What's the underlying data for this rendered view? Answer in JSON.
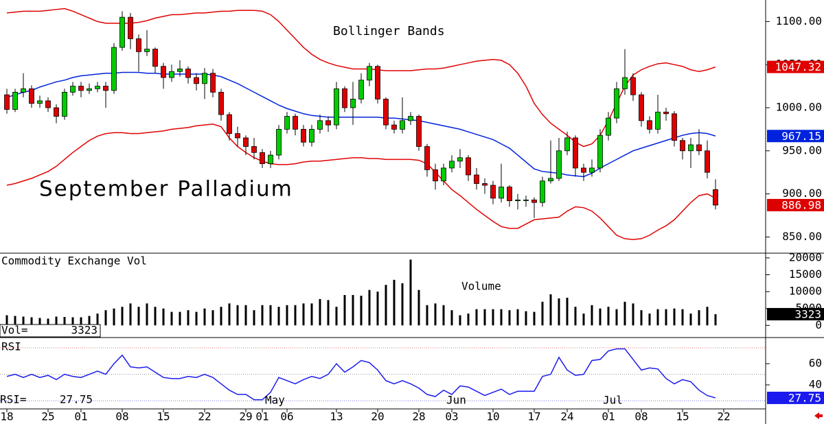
{
  "chart_data": [
    {
      "type": "candlestick",
      "title": "Bollinger Bands",
      "subtitle": "September Palladium",
      "up_color": "#00cc00",
      "down_color": "#dd0000",
      "ylim": [
        832,
        1125
      ],
      "yticks": [
        {
          "value": 1100,
          "label": "1100.00"
        },
        {
          "value": 1050,
          "label": "1050.00"
        },
        {
          "value": 1000,
          "label": "1000.00"
        },
        {
          "value": 950,
          "label": "950.00"
        },
        {
          "value": 900,
          "label": "900.00"
        },
        {
          "value": 850,
          "label": "850.00"
        }
      ],
      "last_label": "886.98",
      "candles": [
        [
          1015,
          1022,
          993,
          998
        ],
        [
          998,
          1022,
          995,
          1018
        ],
        [
          1018,
          1040,
          1012,
          1022
        ],
        [
          1022,
          1026,
          1000,
          1005
        ],
        [
          1005,
          1014,
          1000,
          1008
        ],
        [
          1008,
          1012,
          995,
          1000
        ],
        [
          1000,
          1004,
          982,
          990
        ],
        [
          990,
          1022,
          986,
          1018
        ],
        [
          1018,
          1030,
          1014,
          1025
        ],
        [
          1025,
          1030,
          1012,
          1020
        ],
        [
          1020,
          1028,
          1016,
          1022
        ],
        [
          1022,
          1030,
          1018,
          1025
        ],
        [
          1025,
          1030,
          1000,
          1020
        ],
        [
          1020,
          1075,
          1016,
          1070
        ],
        [
          1070,
          1112,
          1066,
          1105
        ],
        [
          1105,
          1110,
          1068,
          1080
        ],
        [
          1080,
          1085,
          1042,
          1065
        ],
        [
          1065,
          1090,
          1060,
          1068
        ],
        [
          1068,
          1070,
          1040,
          1048
        ],
        [
          1048,
          1052,
          1022,
          1035
        ],
        [
          1035,
          1050,
          1030,
          1042
        ],
        [
          1042,
          1055,
          1036,
          1045
        ],
        [
          1045,
          1048,
          1028,
          1035
        ],
        [
          1035,
          1040,
          1020,
          1028
        ],
        [
          1028,
          1046,
          1010,
          1040
        ],
        [
          1040,
          1045,
          1012,
          1018
        ],
        [
          1018,
          1022,
          985,
          992
        ],
        [
          992,
          995,
          962,
          970
        ],
        [
          970,
          978,
          955,
          965
        ],
        [
          965,
          968,
          945,
          955
        ],
        [
          955,
          965,
          940,
          948
        ],
        [
          948,
          952,
          930,
          935
        ],
        [
          935,
          950,
          930,
          945
        ],
        [
          945,
          980,
          940,
          975
        ],
        [
          975,
          995,
          970,
          990
        ],
        [
          990,
          993,
          968,
          975
        ],
        [
          975,
          980,
          955,
          960
        ],
        [
          960,
          980,
          955,
          975
        ],
        [
          975,
          992,
          970,
          985
        ],
        [
          985,
          990,
          972,
          980
        ],
        [
          980,
          1030,
          975,
          1022
        ],
        [
          1022,
          1025,
          995,
          1000
        ],
        [
          1000,
          1030,
          980,
          1010
        ],
        [
          1010,
          1040,
          1005,
          1032
        ],
        [
          1032,
          1052,
          1025,
          1048
        ],
        [
          1048,
          1050,
          1005,
          1010
        ],
        [
          1010,
          1012,
          975,
          980
        ],
        [
          980,
          985,
          970,
          975
        ],
        [
          975,
          1012,
          970,
          985
        ],
        [
          985,
          995,
          980,
          990
        ],
        [
          990,
          992,
          950,
          955
        ],
        [
          955,
          958,
          920,
          928
        ],
        [
          928,
          935,
          905,
          915
        ],
        [
          915,
          935,
          910,
          930
        ],
        [
          930,
          945,
          925,
          938
        ],
        [
          938,
          952,
          930,
          942
        ],
        [
          942,
          945,
          915,
          922
        ],
        [
          922,
          930,
          905,
          912
        ],
        [
          912,
          918,
          900,
          910
        ],
        [
          910,
          915,
          888,
          895
        ],
        [
          895,
          935,
          890,
          908
        ],
        [
          908,
          910,
          885,
          892
        ],
        [
          892,
          900,
          882,
          893
        ],
        [
          893,
          898,
          885,
          893
        ],
        [
          893,
          896,
          872,
          890
        ],
        [
          890,
          920,
          885,
          915
        ],
        [
          915,
          962,
          912,
          918
        ],
        [
          918,
          965,
          915,
          950
        ],
        [
          950,
          972,
          945,
          965
        ],
        [
          965,
          968,
          920,
          930
        ],
        [
          930,
          935,
          915,
          925
        ],
        [
          925,
          940,
          920,
          930
        ],
        [
          930,
          975,
          925,
          968
        ],
        [
          968,
          995,
          962,
          988
        ],
        [
          988,
          1030,
          982,
          1022
        ],
        [
          1022,
          1068,
          1015,
          1035
        ],
        [
          1035,
          1040,
          1008,
          1015
        ],
        [
          1015,
          1018,
          978,
          985
        ],
        [
          985,
          990,
          970,
          975
        ],
        [
          975,
          1015,
          970,
          995
        ],
        [
          995,
          1000,
          985,
          993
        ],
        [
          993,
          996,
          955,
          962
        ],
        [
          962,
          965,
          940,
          950
        ],
        [
          950,
          965,
          930,
          957
        ],
        [
          957,
          975,
          945,
          950
        ],
        [
          950,
          962,
          918,
          925
        ],
        [
          905,
          917,
          882,
          886.98
        ]
      ],
      "series": [
        {
          "color": "#e00000",
          "last_label": "1047.32",
          "values": [
            1110,
            1111,
            1112,
            1112,
            1112,
            1113,
            1114,
            1115,
            1112,
            1108,
            1104,
            1100,
            1098,
            1098,
            1098,
            1098,
            1099,
            1101,
            1104,
            1106,
            1108,
            1108,
            1109,
            1110,
            1110,
            1111,
            1112,
            1112,
            1113,
            1113,
            1113,
            1112,
            1108,
            1100,
            1090,
            1080,
            1070,
            1062,
            1056,
            1052,
            1049,
            1047,
            1045,
            1045,
            1045,
            1044,
            1043,
            1043,
            1043,
            1043,
            1044,
            1045,
            1045,
            1046,
            1048,
            1050,
            1052,
            1054,
            1055,
            1056,
            1055,
            1050,
            1040,
            1025,
            1005,
            992,
            982,
            975,
            968,
            960,
            955,
            958,
            968,
            985,
            1005,
            1025,
            1038,
            1044,
            1048,
            1051,
            1052,
            1050,
            1048,
            1044,
            1042,
            1044,
            1047.32
          ]
        },
        {
          "color": "#0022dd",
          "last_label": "967.15",
          "values": [
            1012,
            1015,
            1018,
            1020,
            1024,
            1027,
            1030,
            1032,
            1035,
            1037,
            1038,
            1039,
            1040,
            1040,
            1041,
            1041,
            1041,
            1040,
            1040,
            1039,
            1039,
            1039,
            1039,
            1039,
            1039,
            1038,
            1036,
            1032,
            1028,
            1023,
            1018,
            1013,
            1008,
            1003,
            999,
            996,
            993,
            991,
            990,
            989,
            989,
            989,
            989,
            989,
            989,
            989,
            988,
            988,
            987,
            986,
            985,
            983,
            981,
            979,
            977,
            975,
            972,
            969,
            966,
            963,
            958,
            953,
            945,
            937,
            929,
            926,
            925,
            924,
            922,
            921,
            920,
            924,
            930,
            935,
            940,
            945,
            950,
            953,
            956,
            959,
            962,
            965,
            968,
            970,
            971,
            970,
            967.15
          ]
        },
        {
          "color": "#e00000",
          "values": [
            910,
            912,
            915,
            918,
            922,
            926,
            932,
            940,
            948,
            955,
            962,
            967,
            970,
            971,
            971,
            970,
            970,
            971,
            972,
            973,
            975,
            976,
            977,
            979,
            980,
            981,
            978,
            965,
            955,
            948,
            942,
            938,
            935,
            934,
            934,
            935,
            937,
            938,
            938,
            939,
            940,
            941,
            942,
            942,
            941,
            941,
            940,
            940,
            940,
            940,
            939,
            935,
            925,
            915,
            905,
            898,
            890,
            882,
            875,
            868,
            862,
            860,
            860,
            865,
            870,
            871,
            872,
            873,
            880,
            885,
            884,
            880,
            872,
            862,
            852,
            848,
            847,
            848,
            852,
            858,
            863,
            870,
            880,
            890,
            898,
            900,
            895
          ]
        }
      ]
    },
    {
      "type": "bar",
      "title": "Commodity Exchange Vol",
      "subtitle": "Volume",
      "color": "#000000",
      "ylim": [
        -3200,
        21200
      ],
      "yticks": [
        20000,
        15000,
        10000,
        5000,
        0
      ],
      "readout_label": "Vol=",
      "last_label": "3323",
      "values": [
        3000,
        2800,
        2600,
        2400,
        2200,
        2000,
        2600,
        2500,
        2400,
        2400,
        2800,
        3500,
        4500,
        5000,
        5500,
        6500,
        5500,
        6500,
        5500,
        5000,
        4000,
        4000,
        4500,
        4000,
        5000,
        4500,
        5500,
        6500,
        6000,
        6000,
        4500,
        6000,
        6000,
        5500,
        6000,
        6000,
        6500,
        6500,
        7800,
        7500,
        5500,
        9000,
        9000,
        8800,
        10500,
        10000,
        12000,
        13500,
        12500,
        19500,
        10500,
        6000,
        6500,
        6000,
        4500,
        3000,
        3500,
        4800,
        4800,
        4800,
        4800,
        4500,
        4800,
        4200,
        4000,
        7000,
        9200,
        8000,
        8200,
        5500,
        3500,
        6000,
        5000,
        5500,
        4800,
        7000,
        6500,
        4500,
        3500,
        4800,
        4800,
        5000,
        4800,
        3500,
        4500,
        5500,
        3323
      ]
    },
    {
      "type": "line",
      "title": "RSI",
      "color": "#1a1aee",
      "ylim": [
        18,
        84
      ],
      "yticks": [
        60,
        40
      ],
      "reference_lines": [
        {
          "value": 75,
          "color": "#e07070"
        },
        {
          "value": 50,
          "color": "#999999"
        },
        {
          "value": 25,
          "color": "#7070e0"
        }
      ],
      "readout_label": "RSI=",
      "last_label": "27.75",
      "values": [
        48,
        50,
        47,
        50,
        47,
        49,
        45,
        50,
        48,
        47,
        50,
        53,
        50,
        60,
        68,
        57,
        56,
        57,
        52,
        47,
        46,
        46,
        48,
        47,
        50,
        47,
        41,
        35,
        31,
        31,
        26,
        26,
        33,
        47,
        44,
        41,
        45,
        48,
        46,
        50,
        60,
        52,
        57,
        63,
        61,
        54,
        44,
        41,
        44,
        41,
        37,
        31,
        29,
        35,
        31,
        39,
        38,
        34,
        30,
        33,
        36,
        31,
        34,
        34,
        34,
        48,
        50,
        66,
        54,
        49,
        50,
        63,
        64,
        72,
        74,
        74,
        64,
        54,
        56,
        55,
        46,
        41,
        45,
        43,
        35,
        30,
        27.75
      ],
      "xticks": [
        {
          "value": 0,
          "label": "18"
        },
        {
          "value": 5,
          "label": "25"
        },
        {
          "value": 9,
          "label": "01"
        },
        {
          "value": 14,
          "label": "08"
        },
        {
          "value": 19,
          "label": "15"
        },
        {
          "value": 24,
          "label": "22"
        },
        {
          "value": 29,
          "label": "29"
        },
        {
          "value": 31,
          "label": "01"
        },
        {
          "value": 34,
          "label": "06"
        },
        {
          "value": 40,
          "label": "13"
        },
        {
          "value": 45,
          "label": "20"
        },
        {
          "value": 50,
          "label": "28"
        },
        {
          "value": 54,
          "label": "03"
        },
        {
          "value": 59,
          "label": "10"
        },
        {
          "value": 64,
          "label": "17"
        },
        {
          "value": 68,
          "label": "24"
        },
        {
          "value": 73,
          "label": "01"
        },
        {
          "value": 77,
          "label": "08"
        },
        {
          "value": 82,
          "label": "15"
        },
        {
          "value": 87,
          "label": "22"
        }
      ],
      "month_labels": [
        {
          "value": 32,
          "label": "May"
        },
        {
          "value": 54,
          "label": "Jun"
        },
        {
          "value": 73,
          "label": "Jul"
        }
      ]
    }
  ]
}
